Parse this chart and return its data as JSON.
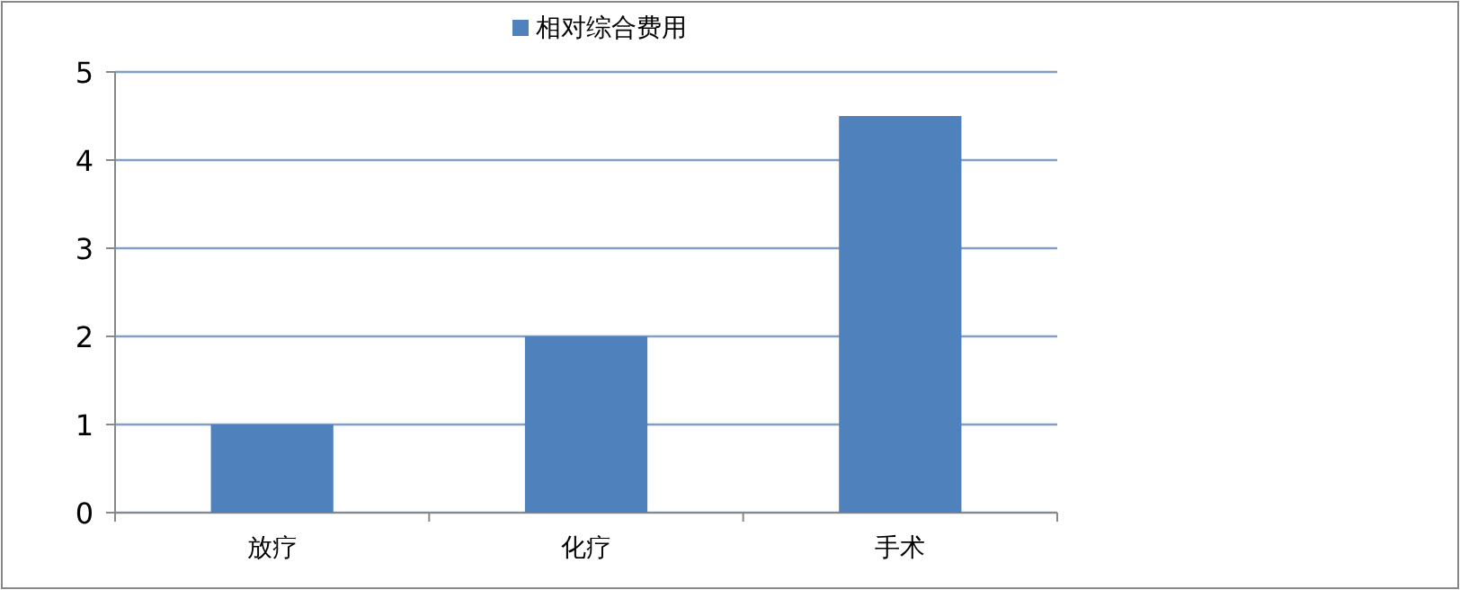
{
  "chart_data": {
    "type": "bar",
    "categories": [
      "放疗",
      "化疗",
      "手术"
    ],
    "series": [
      {
        "name": "相对综合费用",
        "color": "#4f81bd",
        "values": [
          1,
          2,
          4.5
        ]
      }
    ],
    "ylim": [
      0,
      5
    ],
    "yticks": [
      0,
      1,
      2,
      3,
      4,
      5
    ],
    "grid": "y",
    "legend": "top"
  }
}
